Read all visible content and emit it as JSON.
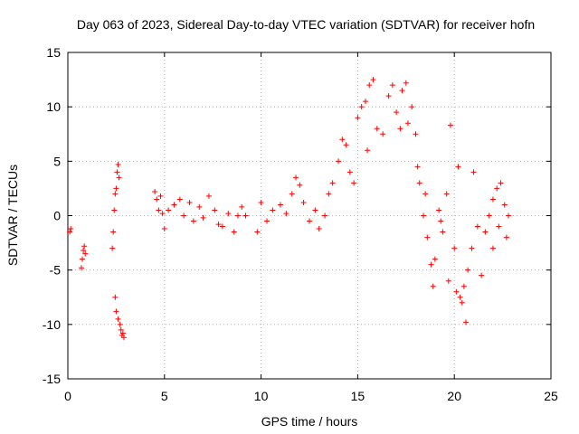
{
  "chart_data": {
    "type": "scatter",
    "title": "Day 063 of 2023, Sidereal Day-to-day VTEC variation (SDTVAR) for receiver hofn",
    "xlabel": "GPS time / hours",
    "ylabel": "SDTVAR / TECUs",
    "xlim": [
      0,
      25
    ],
    "ylim": [
      -15,
      15
    ],
    "xticks": [
      0,
      5,
      10,
      15,
      20,
      25
    ],
    "yticks": [
      -15,
      -10,
      -5,
      0,
      5,
      10,
      15
    ],
    "xtick_labels": [
      "0",
      "5",
      "10",
      "15",
      "20",
      "25"
    ],
    "ytick_labels": [
      "-15",
      "-10",
      "-5",
      "0",
      "5",
      "10",
      "15"
    ],
    "grid": true,
    "marker": "+",
    "color": "#ff0000",
    "series": [
      {
        "name": "hofn",
        "x": [
          0.1,
          0.15,
          0.7,
          0.75,
          0.8,
          0.85,
          0.9,
          2.3,
          2.35,
          2.4,
          2.45,
          2.5,
          2.55,
          2.6,
          2.65,
          2.45,
          2.5,
          2.6,
          2.7,
          2.75,
          2.8,
          2.85,
          2.9,
          4.5,
          4.6,
          4.7,
          4.8,
          4.9,
          5.0,
          5.2,
          5.5,
          5.8,
          6.0,
          6.3,
          6.5,
          6.8,
          7.0,
          7.3,
          7.6,
          7.8,
          8.0,
          8.3,
          8.6,
          8.8,
          9.0,
          9.2,
          9.8,
          10.0,
          10.3,
          10.6,
          11.0,
          11.3,
          11.6,
          11.8,
          12.0,
          12.2,
          12.5,
          12.8,
          13.0,
          13.3,
          13.5,
          13.7,
          14.0,
          14.2,
          14.4,
          14.6,
          14.8,
          15.0,
          15.2,
          15.4,
          15.6,
          15.8,
          15.5,
          16.0,
          16.3,
          16.6,
          16.8,
          17.0,
          17.3,
          17.5,
          17.8,
          17.2,
          17.6,
          18.0,
          18.2,
          18.4,
          18.6,
          18.8,
          18.1,
          18.5,
          18.9,
          19.2,
          19.4,
          19.6,
          19.0,
          19.3,
          19.7,
          20.0,
          20.1,
          20.3,
          20.5,
          20.7,
          19.8,
          20.2,
          20.4,
          20.6,
          20.9,
          21.0,
          21.2,
          21.4,
          21.6,
          21.8,
          22.0,
          22.2,
          22.4,
          22.6,
          22.8,
          22.0,
          22.3,
          22.7
        ],
        "y": [
          -1.5,
          -1.2,
          -4.8,
          -4.0,
          -3.2,
          -2.8,
          -3.5,
          -3.0,
          -1.5,
          0.5,
          2.0,
          2.5,
          4.0,
          4.7,
          3.5,
          -7.5,
          -8.8,
          -9.5,
          -10.0,
          -10.5,
          -11.0,
          -10.8,
          -11.2,
          2.2,
          1.5,
          0.5,
          1.8,
          0.2,
          -1.2,
          0.5,
          1.0,
          1.5,
          0.0,
          1.2,
          -0.5,
          0.8,
          -0.2,
          1.8,
          0.5,
          -0.8,
          -1.0,
          0.2,
          -1.5,
          0.0,
          0.8,
          0.0,
          -1.5,
          1.2,
          -0.5,
          0.5,
          1.0,
          0.2,
          2.0,
          3.5,
          2.8,
          1.2,
          -0.5,
          0.5,
          -1.2,
          0.0,
          2.0,
          3.0,
          5.0,
          7.0,
          6.5,
          4.0,
          3.0,
          9.0,
          10.0,
          10.5,
          12.0,
          12.5,
          6.0,
          8.0,
          7.5,
          11.0,
          12.0,
          9.5,
          11.5,
          12.2,
          10.0,
          8.0,
          8.5,
          7.5,
          3.0,
          0.0,
          -2.0,
          -4.5,
          4.5,
          2.0,
          -6.5,
          0.5,
          -1.5,
          2.0,
          -4.0,
          -0.5,
          -6.0,
          -3.0,
          -7.0,
          -7.5,
          -6.5,
          -5.0,
          8.3,
          4.5,
          -8.0,
          -9.8,
          -3.0,
          4.0,
          -1.0,
          -5.5,
          -1.5,
          0.0,
          1.5,
          2.5,
          3.0,
          1.0,
          0.0,
          -3.0,
          -1.0,
          -2.0
        ]
      }
    ]
  }
}
